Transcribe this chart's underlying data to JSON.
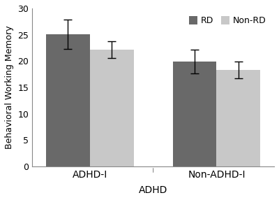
{
  "groups": [
    "ADHD-I",
    "Non-ADHD-I"
  ],
  "series": [
    "RD",
    "Non-RD"
  ],
  "values": [
    [
      25.1,
      22.2
    ],
    [
      19.9,
      18.3
    ]
  ],
  "errors": [
    [
      2.8,
      1.6
    ],
    [
      2.3,
      1.6
    ]
  ],
  "bar_colors": [
    "#696969",
    "#c8c8c8"
  ],
  "ylabel": "Behavioral Working Memory",
  "xlabel": "ADHD",
  "ylim": [
    0,
    30
  ],
  "yticks": [
    0,
    5,
    10,
    15,
    20,
    25,
    30
  ],
  "legend_labels": [
    "RD",
    "Non-RD"
  ],
  "bar_width": 0.38,
  "x_positions": [
    0.0,
    1.1
  ],
  "figsize": [
    4.0,
    2.86
  ],
  "dpi": 100,
  "background_color": "#ffffff"
}
